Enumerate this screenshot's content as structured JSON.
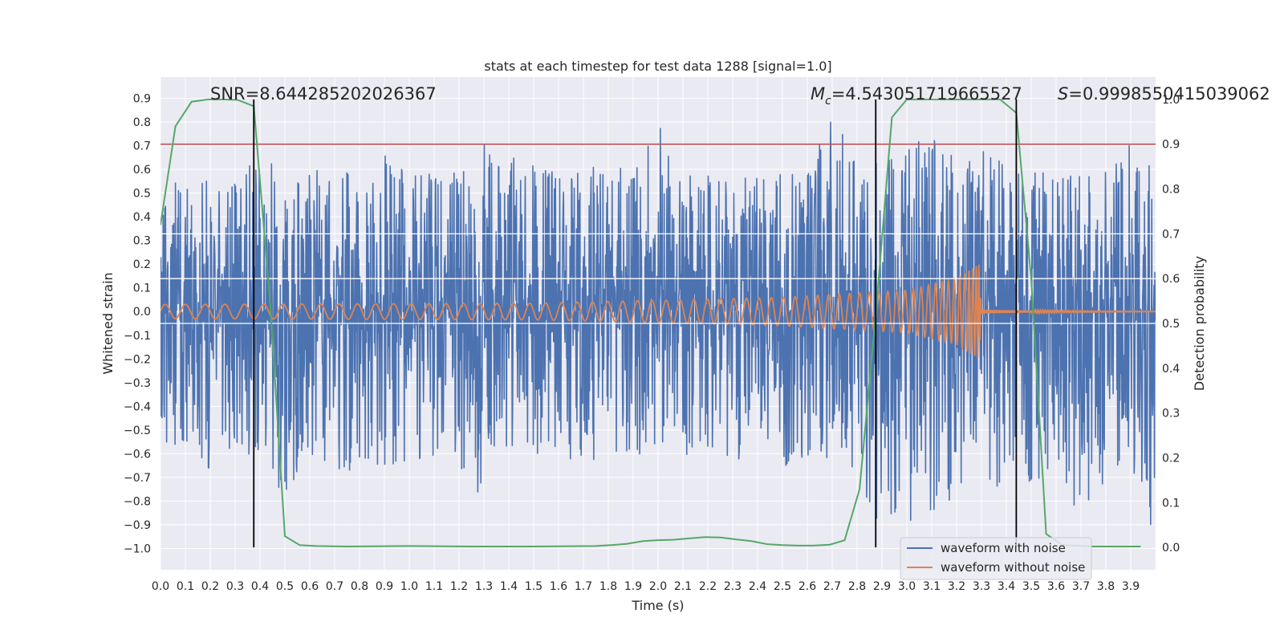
{
  "chart_data": {
    "type": "line",
    "title": "stats at each timestep for test data 1288 [signal=1.0]",
    "xlabel": "Time (s)",
    "ylabel": "Whitened strain",
    "y2label": "Detection probability",
    "xlim": [
      0.0,
      4.0
    ],
    "ylim": [
      -1.09,
      0.99
    ],
    "y2lim": [
      -0.05,
      1.05
    ],
    "x_ticks": [
      "0.0",
      "0.1",
      "0.2",
      "0.3",
      "0.4",
      "0.5",
      "0.6",
      "0.7",
      "0.8",
      "0.9",
      "1.0",
      "1.1",
      "1.2",
      "1.3",
      "1.4",
      "1.5",
      "1.6",
      "1.7",
      "1.8",
      "1.9",
      "2.0",
      "2.1",
      "2.2",
      "2.3",
      "2.4",
      "2.5",
      "2.6",
      "2.7",
      "2.8",
      "2.9",
      "3.0",
      "3.1",
      "3.2",
      "3.3",
      "3.4",
      "3.5",
      "3.6",
      "3.7",
      "3.8",
      "3.9"
    ],
    "y_ticks": [
      "0.9",
      "0.8",
      "0.7",
      "0.6",
      "0.5",
      "0.4",
      "0.3",
      "0.2",
      "0.1",
      "0.0",
      "−0.1",
      "−0.2",
      "−0.3",
      "−0.4",
      "−0.5",
      "−0.6",
      "−0.7",
      "−0.8",
      "−0.9",
      "−1.0"
    ],
    "y2_ticks": [
      "1.0",
      "0.9",
      "0.8",
      "0.7",
      "0.6",
      "0.5",
      "0.4",
      "0.3",
      "0.2",
      "0.1",
      "0.0"
    ],
    "annotations": {
      "snr": "SNR=8.644285202026367",
      "mc_symbol": "M",
      "mc_sub": "c",
      "mc_value": "=4.543051719665527",
      "s_symbol": "S",
      "s_value": "=0.9998550415039062"
    },
    "threshold": 0.9,
    "vlines": [
      0.375,
      2.875,
      3.44
    ],
    "legend": {
      "position": "lower-right",
      "entries": [
        "waveform with noise",
        "waveform without noise"
      ]
    },
    "series": [
      {
        "name": "waveform with noise",
        "color": "#4c72b0",
        "axis": "left",
        "peak_envelope": [
          [
            0.0,
            0.52
          ],
          [
            0.1,
            0.56
          ],
          [
            0.2,
            0.58
          ],
          [
            0.3,
            0.57
          ],
          [
            0.4,
            0.66
          ],
          [
            0.5,
            0.62
          ],
          [
            0.6,
            0.6
          ],
          [
            0.7,
            0.62
          ],
          [
            0.8,
            0.58
          ],
          [
            0.9,
            0.66
          ],
          [
            1.0,
            0.6
          ],
          [
            1.1,
            0.63
          ],
          [
            1.2,
            0.6
          ],
          [
            1.3,
            0.72
          ],
          [
            1.4,
            0.66
          ],
          [
            1.5,
            0.62
          ],
          [
            1.6,
            0.6
          ],
          [
            1.7,
            0.64
          ],
          [
            1.8,
            0.6
          ],
          [
            1.9,
            0.66
          ],
          [
            2.0,
            0.82
          ],
          [
            2.1,
            0.62
          ],
          [
            2.2,
            0.6
          ],
          [
            2.3,
            0.58
          ],
          [
            2.4,
            0.62
          ],
          [
            2.5,
            0.58
          ],
          [
            2.6,
            0.6
          ],
          [
            2.7,
            0.84
          ],
          [
            2.8,
            0.62
          ],
          [
            2.9,
            0.64
          ],
          [
            3.0,
            0.7
          ],
          [
            3.1,
            0.76
          ],
          [
            3.2,
            0.64
          ],
          [
            3.3,
            0.68
          ],
          [
            3.4,
            0.62
          ],
          [
            3.5,
            0.6
          ],
          [
            3.6,
            0.6
          ],
          [
            3.7,
            0.62
          ],
          [
            3.8,
            0.64
          ],
          [
            3.9,
            0.72
          ],
          [
            4.0,
            0.6
          ]
        ],
        "trough_envelope": [
          [
            0.0,
            -0.6
          ],
          [
            0.1,
            -0.55
          ],
          [
            0.2,
            -0.7
          ],
          [
            0.3,
            -0.64
          ],
          [
            0.4,
            -0.6
          ],
          [
            0.5,
            -0.8
          ],
          [
            0.6,
            -0.66
          ],
          [
            0.7,
            -0.72
          ],
          [
            0.8,
            -0.65
          ],
          [
            0.9,
            -0.66
          ],
          [
            1.0,
            -0.68
          ],
          [
            1.1,
            -0.62
          ],
          [
            1.2,
            -0.66
          ],
          [
            1.3,
            -0.82
          ],
          [
            1.4,
            -0.62
          ],
          [
            1.5,
            -0.6
          ],
          [
            1.6,
            -0.62
          ],
          [
            1.7,
            -0.64
          ],
          [
            1.8,
            -0.66
          ],
          [
            1.9,
            -0.64
          ],
          [
            2.0,
            -0.66
          ],
          [
            2.1,
            -0.62
          ],
          [
            2.2,
            -0.6
          ],
          [
            2.3,
            -0.64
          ],
          [
            2.4,
            -0.62
          ],
          [
            2.5,
            -0.66
          ],
          [
            2.6,
            -0.62
          ],
          [
            2.7,
            -0.64
          ],
          [
            2.8,
            -0.7
          ],
          [
            2.9,
            -0.96
          ],
          [
            3.0,
            -0.92
          ],
          [
            3.1,
            -0.86
          ],
          [
            3.2,
            -0.8
          ],
          [
            3.3,
            -0.78
          ],
          [
            3.4,
            -0.76
          ],
          [
            3.5,
            -0.72
          ],
          [
            3.6,
            -0.7
          ],
          [
            3.7,
            -0.9
          ],
          [
            3.8,
            -0.7
          ],
          [
            3.9,
            -0.66
          ],
          [
            4.0,
            -1.0
          ]
        ]
      },
      {
        "name": "waveform without noise",
        "color": "#dd8452",
        "axis": "left",
        "amplitude_envelope": [
          [
            0.0,
            0.03
          ],
          [
            1.5,
            0.035
          ],
          [
            2.5,
            0.06
          ],
          [
            3.0,
            0.09
          ],
          [
            3.2,
            0.14
          ],
          [
            3.29,
            0.2
          ],
          [
            3.3,
            0.0
          ],
          [
            4.0,
            0.0
          ]
        ],
        "chirp_end": 3.3,
        "merger_residual": 0.008
      },
      {
        "name": "detection probability",
        "color": "#55a868",
        "axis": "right",
        "x": [
          0.0,
          0.06,
          0.125,
          0.19,
          0.25,
          0.31,
          0.375,
          0.44,
          0.5,
          0.56,
          0.625,
          0.75,
          1.0,
          1.25,
          1.5,
          1.75,
          1.81,
          1.875,
          1.94,
          2.0,
          2.06,
          2.125,
          2.19,
          2.25,
          2.31,
          2.375,
          2.44,
          2.5,
          2.56,
          2.625,
          2.69,
          2.75,
          2.81,
          2.875,
          2.94,
          3.0,
          3.06,
          3.125,
          3.25,
          3.375,
          3.44,
          3.5,
          3.56,
          3.625,
          3.75,
          3.94
        ],
        "y": [
          0.72,
          0.94,
          0.995,
          1.0,
          1.0,
          0.999,
          0.985,
          0.55,
          0.025,
          0.005,
          0.003,
          0.002,
          0.003,
          0.002,
          0.002,
          0.003,
          0.005,
          0.008,
          0.014,
          0.016,
          0.017,
          0.02,
          0.023,
          0.022,
          0.018,
          0.014,
          0.007,
          0.005,
          0.004,
          0.004,
          0.006,
          0.016,
          0.13,
          0.52,
          0.96,
          1.0,
          1.0,
          1.0,
          1.0,
          1.0,
          0.97,
          0.6,
          0.03,
          0.005,
          0.002,
          0.002
        ]
      },
      {
        "name": "threshold",
        "color": "#c44e52",
        "axis": "right",
        "y": 0.9
      }
    ]
  }
}
